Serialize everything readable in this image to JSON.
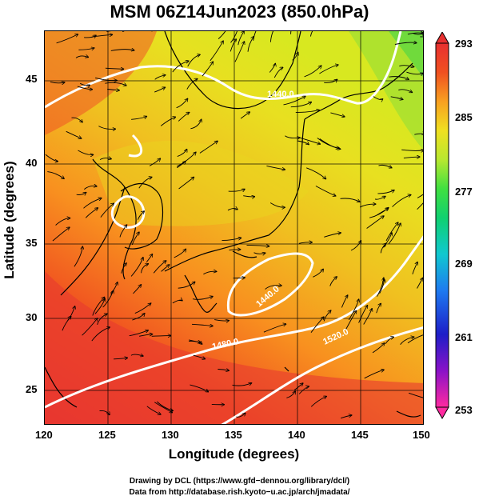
{
  "title": "MSM 06Z14Jun2023 (850.0hPa)",
  "axes": {
    "xlabel": "Longitude (degrees)",
    "ylabel": "Latitude  (degrees)",
    "xticks": [
      "120",
      "125",
      "130",
      "135",
      "140",
      "145",
      "150"
    ],
    "yticks": [
      "25",
      "30",
      "35",
      "40",
      "45"
    ]
  },
  "colorbar": {
    "ticks": [
      "293",
      "285",
      "277",
      "269",
      "261",
      "253"
    ],
    "colors": [
      "#ff2aa0",
      "#8a12c8",
      "#1e1ec8",
      "#1e7af0",
      "#10c8d0",
      "#10d070",
      "#40e040",
      "#b8e830",
      "#f0e020",
      "#f8a020",
      "#f05020",
      "#e83030"
    ]
  },
  "contour_labels": {
    "c1": "1440.0",
    "c2": "1440.0",
    "c3": "1480.0",
    "c4": "1520.0"
  },
  "credits": {
    "line1": "Drawing by DCL (https://www.gfd−dennou.org/library/dcl/)",
    "line2": "Data from http://database.rish.kyoto−u.ac.jp/arch/jmadata/"
  }
}
